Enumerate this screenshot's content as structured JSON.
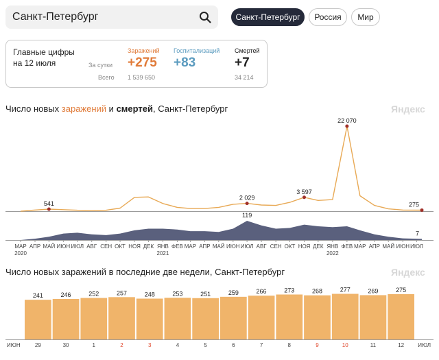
{
  "search": {
    "value": "Санкт-Петербург"
  },
  "tabs": [
    {
      "label": "Санкт-Петербург",
      "active": true
    },
    {
      "label": "Россия",
      "active": false
    },
    {
      "label": "Мир",
      "active": false
    }
  ],
  "summary": {
    "title_line1": "Главные цифры",
    "title_line2": "на 12 июля",
    "row_day": "За сутки",
    "row_total": "Всего",
    "infections": {
      "label": "Заражений",
      "day": "+275",
      "total": "1 539 650",
      "color": "#e07b39"
    },
    "hospital": {
      "label": "Госпитализаций",
      "day": "+83",
      "color": "#5b9bbf"
    },
    "deaths": {
      "label": "Смертей",
      "day": "+7",
      "total": "34 214",
      "color": "#222222"
    }
  },
  "chart1": {
    "title_pre": "Число новых ",
    "title_inf": "заражений",
    "title_mid": " и ",
    "title_dth": "смертей",
    "title_post": ", Санкт-Петербург",
    "brand": "Яндекс"
  },
  "chart2": {
    "title": "Число новых заражений в последние две недели, Санкт-Петербург",
    "brand": "Яндекс"
  },
  "chart_data": [
    {
      "type": "area",
      "title": "Число новых заражений и смертей, Санкт-Петербург",
      "series": [
        {
          "name": "заражений",
          "color": "#e8a955",
          "x": [
            "2020-03-01",
            "2020-04-01",
            "2020-05-01",
            "2020-06-01",
            "2020-07-01",
            "2020-08-01",
            "2020-09-01",
            "2020-10-01",
            "2020-11-01",
            "2020-12-01",
            "2021-01-01",
            "2021-02-01",
            "2021-03-01",
            "2021-04-01",
            "2021-05-01",
            "2021-06-01",
            "2021-07-01",
            "2021-08-01",
            "2021-09-01",
            "2021-10-01",
            "2021-11-01",
            "2021-12-01",
            "2022-01-01",
            "2022-02-01",
            "2022-03-01",
            "2022-04-01",
            "2022-05-01",
            "2022-06-01",
            "2022-07-12"
          ],
          "values": [
            0,
            300,
            541,
            400,
            250,
            200,
            250,
            800,
            3600,
            3700,
            2000,
            1000,
            700,
            700,
            1000,
            1800,
            2029,
            1600,
            1500,
            2300,
            3597,
            2800,
            3000,
            22070,
            4000,
            1500,
            600,
            300,
            275
          ]
        },
        {
          "name": "смертей",
          "color": "#3d4466",
          "x": [
            "2020-03-01",
            "2020-04-01",
            "2020-05-01",
            "2020-06-01",
            "2020-07-01",
            "2020-08-01",
            "2020-09-01",
            "2020-10-01",
            "2020-11-01",
            "2020-12-01",
            "2021-01-01",
            "2021-02-01",
            "2021-03-01",
            "2021-04-01",
            "2021-05-01",
            "2021-06-01",
            "2021-07-01",
            "2021-08-01",
            "2021-09-01",
            "2021-10-01",
            "2021-11-01",
            "2021-12-01",
            "2022-01-01",
            "2022-02-01",
            "2022-03-01",
            "2022-04-01",
            "2022-05-01",
            "2022-06-01",
            "2022-07-12"
          ],
          "values": [
            0,
            8,
            20,
            40,
            45,
            35,
            30,
            40,
            60,
            70,
            70,
            65,
            55,
            55,
            50,
            70,
            119,
            90,
            70,
            75,
            95,
            85,
            80,
            85,
            60,
            35,
            20,
            10,
            7
          ]
        }
      ],
      "annotations": [
        {
          "date": "2020-05-01",
          "label": "541"
        },
        {
          "date": "2021-07-01",
          "label": "2 029"
        },
        {
          "date": "2021-11-01",
          "label": "3 597"
        },
        {
          "date": "2022-02-01",
          "label": "22 070"
        },
        {
          "date": "2022-07-12",
          "label": "275"
        },
        {
          "date": "2021-07-01",
          "label": "119",
          "series": "смертей"
        },
        {
          "date": "2022-07-12",
          "label": "7",
          "series": "смертей"
        }
      ],
      "x_ticks": [
        "МАР",
        "АПР",
        "МАЙ",
        "ИЮН",
        "ИЮЛ",
        "АВГ",
        "СЕН",
        "ОКТ",
        "НОЯ",
        "ДЕК",
        "ЯНВ",
        "ФЕВ",
        "МАР",
        "АПР",
        "МАЙ",
        "ИЮН",
        "ИЮЛ",
        "АВГ",
        "СЕН",
        "ОКТ",
        "НОЯ",
        "ДЕК",
        "ЯНВ",
        "ФЕВ",
        "МАР",
        "АПР",
        "МАЙ",
        "ИЮН",
        "ИЮЛ"
      ],
      "x_tick_dates": [
        "2020-03-01",
        "2020-04-01",
        "2020-05-01",
        "2020-06-01",
        "2020-07-01",
        "2020-08-01",
        "2020-09-01",
        "2020-10-01",
        "2020-11-01",
        "2020-12-01",
        "2021-01-01",
        "2021-02-01",
        "2021-03-01",
        "2021-04-01",
        "2021-05-01",
        "2021-06-01",
        "2021-07-01",
        "2021-08-01",
        "2021-09-01",
        "2021-10-01",
        "2021-11-01",
        "2021-12-01",
        "2022-01-01",
        "2022-02-01",
        "2022-03-01",
        "2022-04-01",
        "2022-05-01",
        "2022-06-01",
        "2022-07-01"
      ],
      "year_labels": [
        {
          "date": "2020-03-01",
          "label": "2020"
        },
        {
          "date": "2021-01-01",
          "label": "2021"
        },
        {
          "date": "2022-01-01",
          "label": "2022"
        }
      ]
    },
    {
      "type": "bar",
      "title": "Число новых заражений в последние две недели, Санкт-Петербург",
      "categories": [
        "29",
        "30",
        "1",
        "2",
        "3",
        "4",
        "5",
        "6",
        "7",
        "8",
        "9",
        "10",
        "11",
        "12"
      ],
      "values": [
        241,
        246,
        252,
        257,
        248,
        253,
        251,
        259,
        266,
        273,
        268,
        277,
        269,
        275
      ],
      "weekend": [
        false,
        false,
        false,
        true,
        true,
        false,
        false,
        false,
        false,
        false,
        true,
        true,
        false,
        false
      ],
      "x_start_label": "ИЮН",
      "x_end_label": "ИЮЛ",
      "bar_color": "#f0b46a",
      "weekend_color": "#e0472c",
      "ylim": [
        0,
        300
      ]
    }
  ]
}
